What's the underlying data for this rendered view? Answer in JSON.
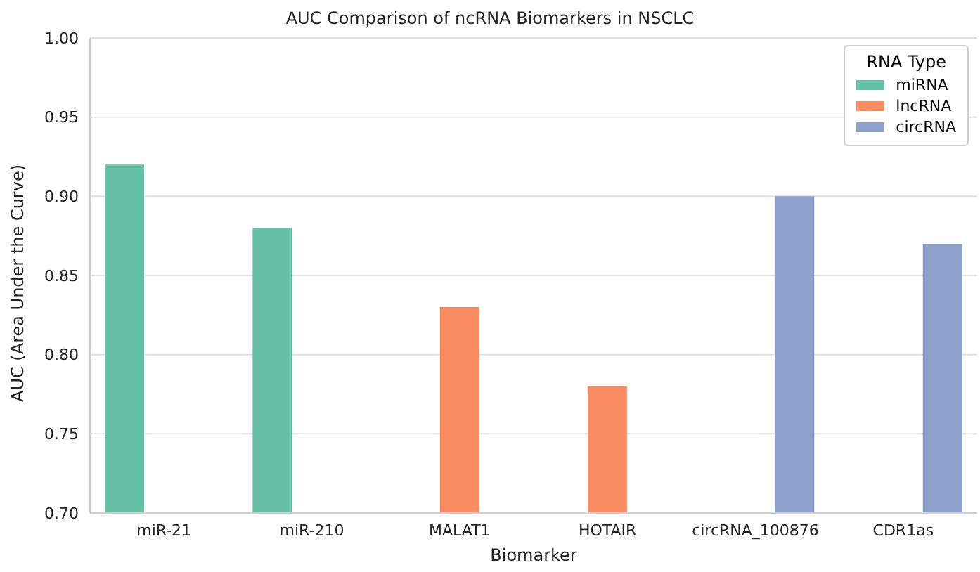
{
  "chart_data": {
    "type": "bar",
    "title": "AUC Comparison of ncRNA Biomarkers in NSCLC",
    "xlabel": "Biomarker",
    "ylabel": "AUC (Area Under the Curve)",
    "legend_title": "RNA Type",
    "categories": [
      "miR-21",
      "miR-210",
      "MALAT1",
      "HOTAIR",
      "circRNA_100876",
      "CDR1as"
    ],
    "series": [
      {
        "name": "miRNA",
        "color": "#66c2a5",
        "values": [
          0.92,
          0.88,
          null,
          null,
          null,
          null
        ]
      },
      {
        "name": "lncRNA",
        "color": "#fc8d62",
        "values": [
          null,
          null,
          0.83,
          0.78,
          null,
          null
        ]
      },
      {
        "name": "circRNA",
        "color": "#8da0cb",
        "values": [
          null,
          null,
          null,
          null,
          0.9,
          0.87
        ]
      }
    ],
    "ylim": [
      0.7,
      1.0
    ],
    "yticks": [
      {
        "value": 0.7,
        "label": "0.70"
      },
      0.75,
      {
        "value": 0.8,
        "label": "0.80"
      },
      0.85,
      {
        "value": 0.9,
        "label": "0.90"
      },
      0.95,
      {
        "value": 1.0,
        "label": "1.00"
      }
    ],
    "grid": "y",
    "legend": "top right"
  }
}
